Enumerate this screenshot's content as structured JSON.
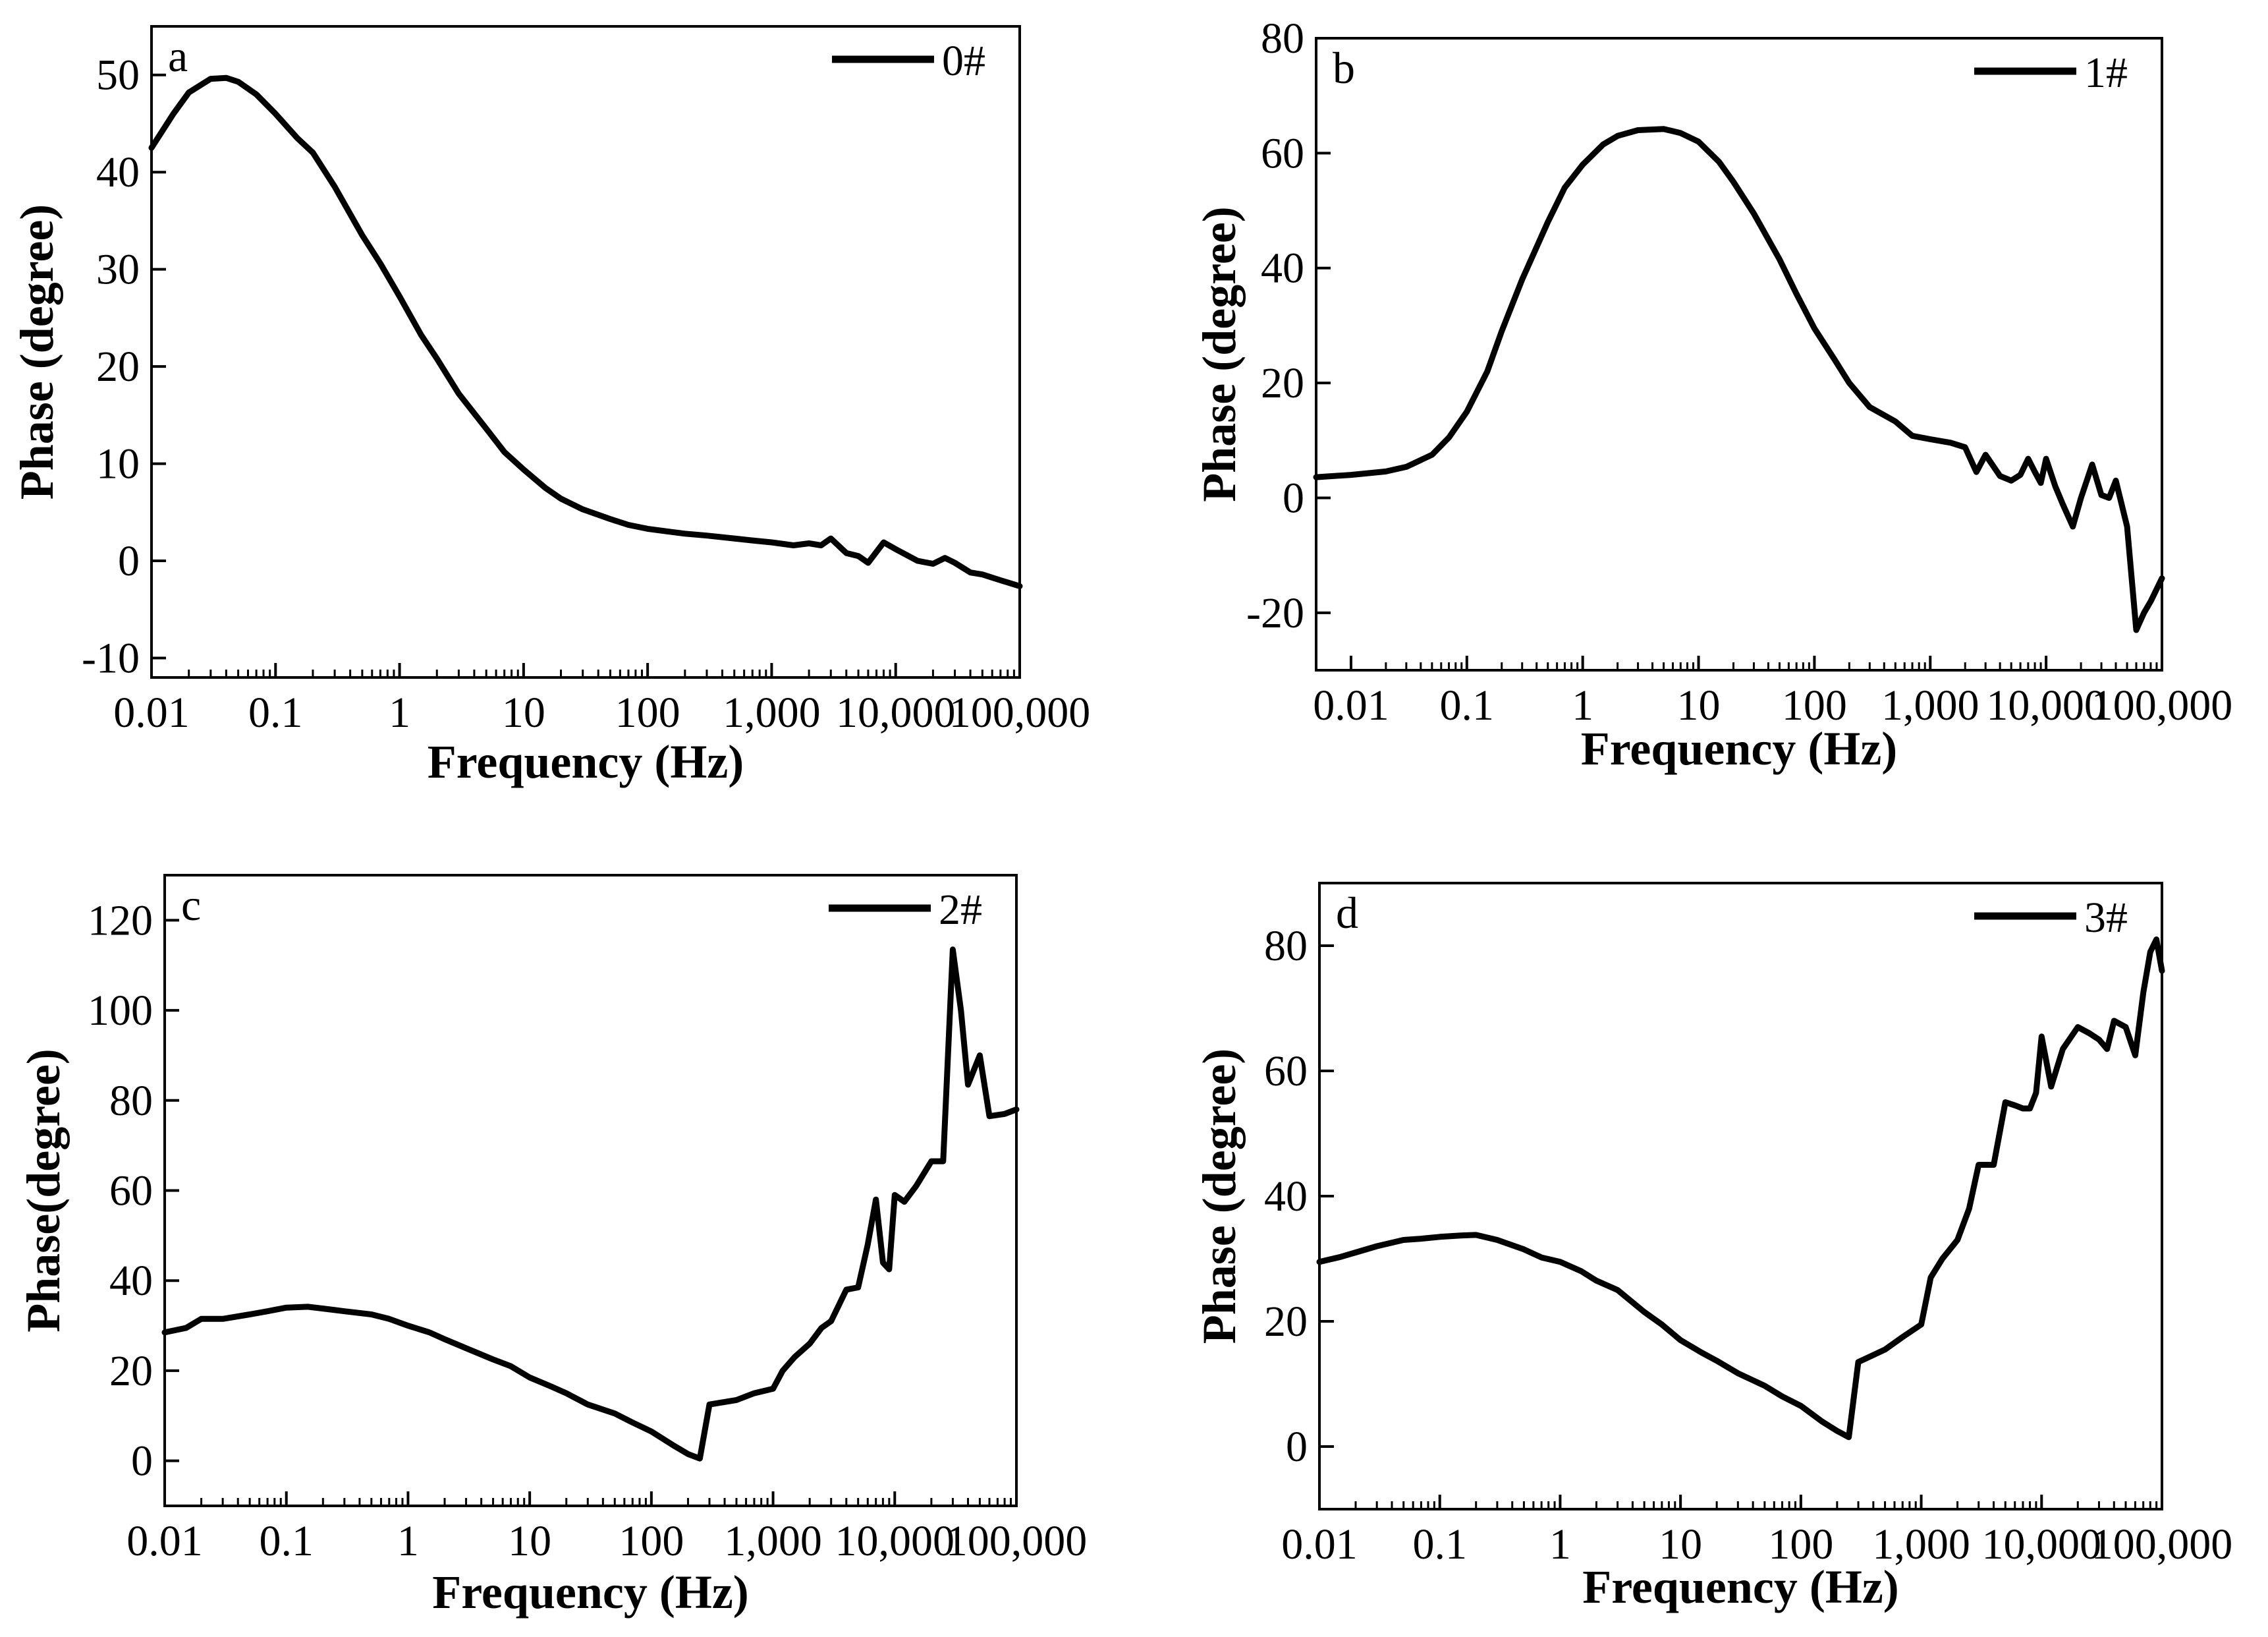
{
  "chart_data": [
    {
      "panel": "a",
      "type": "line",
      "xscale": "log",
      "xlim": [
        0.01,
        100000
      ],
      "ylim": [
        -12,
        55
      ],
      "xticks": [
        0.01,
        0.1,
        1,
        10,
        100,
        1000,
        10000,
        100000
      ],
      "xtick_labels": [
        "0.01",
        "0.1",
        "1",
        "10",
        "100",
        "1,000",
        "10,000",
        "100,000"
      ],
      "yticks": [
        -10,
        0,
        10,
        20,
        30,
        40,
        50
      ],
      "ytick_labels": [
        "-10",
        "0",
        "10",
        "20",
        "30",
        "40",
        "50"
      ],
      "xlabel": "Frequency (Hz)",
      "ylabel": "Phase (degree)",
      "legend_position": "top-right",
      "series": [
        {
          "name": "0#",
          "x": [
            0.01,
            0.015,
            0.02,
            0.03,
            0.04,
            0.05,
            0.07,
            0.1,
            0.15,
            0.2,
            0.3,
            0.5,
            0.7,
            1,
            1.5,
            2,
            3,
            5,
            7,
            10,
            15,
            20,
            30,
            50,
            70,
            100,
            150,
            200,
            300,
            500,
            700,
            1000,
            1500,
            2000,
            2500,
            3000,
            4000,
            5000,
            6000,
            8000,
            10000,
            15000,
            20000,
            25000,
            30000,
            40000,
            50000,
            70000,
            100000
          ],
          "values": [
            42.5,
            46,
            48.2,
            49.6,
            49.7,
            49.3,
            48,
            46,
            43.5,
            42,
            38.5,
            33.5,
            30.6,
            27.2,
            23.2,
            20.8,
            17.2,
            13.6,
            11.2,
            9.4,
            7.5,
            6.4,
            5.3,
            4.3,
            3.7,
            3.3,
            3,
            2.8,
            2.6,
            2.3,
            2.1,
            1.9,
            1.6,
            1.8,
            1.6,
            2.3,
            0.8,
            0.5,
            -0.2,
            1.9,
            1.2,
            0,
            -0.3,
            0.3,
            -0.2,
            -1.2,
            -1.4,
            -2.0,
            -2.6
          ]
        }
      ]
    },
    {
      "panel": "b",
      "type": "line",
      "xscale": "log",
      "xlim": [
        0.005,
        100000
      ],
      "ylim": [
        -30,
        80
      ],
      "xticks": [
        0.01,
        0.1,
        1,
        10,
        100,
        1000,
        10000,
        100000
      ],
      "xtick_labels": [
        "0.01",
        "0.1",
        "1",
        "10",
        "100",
        "1,000",
        "10,000",
        "100,000"
      ],
      "yticks": [
        -20,
        0,
        20,
        40,
        60,
        80
      ],
      "ytick_labels": [
        "-20",
        "0",
        "20",
        "40",
        "60",
        "80"
      ],
      "xlabel": "Frequency (Hz)",
      "ylabel": "Phase (degree)",
      "legend_position": "top-right",
      "series": [
        {
          "name": "1#",
          "x": [
            0.005,
            0.01,
            0.02,
            0.03,
            0.05,
            0.07,
            0.1,
            0.15,
            0.2,
            0.3,
            0.5,
            0.7,
            1,
            1.5,
            2,
            3,
            5,
            7,
            10,
            15,
            20,
            30,
            50,
            70,
            100,
            150,
            200,
            300,
            500,
            700,
            1000,
            1500,
            2000,
            2500,
            3000,
            4000,
            5000,
            6000,
            7000,
            8000,
            9000,
            10000,
            12000,
            14000,
            17000,
            20000,
            25000,
            30000,
            35000,
            40000,
            50000,
            60000,
            70000,
            80000,
            100000
          ],
          "values": [
            3.6,
            4,
            4.6,
            5.4,
            7.5,
            10.5,
            15,
            22,
            29,
            38,
            48,
            54,
            58,
            61.5,
            63,
            64,
            64.2,
            63.5,
            62,
            58.5,
            55,
            49.5,
            41.5,
            35.5,
            29.5,
            24,
            20,
            15.8,
            13.3,
            10.8,
            10.2,
            9.6,
            8.8,
            4.5,
            7.5,
            3.8,
            3,
            4,
            6.8,
            4.5,
            2.6,
            6.8,
            2,
            -1.2,
            -5,
            0,
            5.8,
            0.5,
            0,
            3,
            -5,
            -23,
            -20,
            -18,
            -14
          ]
        }
      ]
    },
    {
      "panel": "c",
      "type": "line",
      "xscale": "log",
      "xlim": [
        0.01,
        100000
      ],
      "ylim": [
        -10,
        130
      ],
      "xticks": [
        0.01,
        0.1,
        1,
        10,
        100,
        1000,
        10000,
        100000
      ],
      "xtick_labels": [
        "0.01",
        "0.1",
        "1",
        "10",
        "100",
        "1,000",
        "10,000",
        "100,000"
      ],
      "yticks": [
        0,
        20,
        40,
        60,
        80,
        100,
        120
      ],
      "ytick_labels": [
        "0",
        "20",
        "40",
        "60",
        "80",
        "100",
        "120"
      ],
      "xlabel": "Frequency (Hz)",
      "ylabel": "Phase(degree)",
      "legend_position": "top-right",
      "series": [
        {
          "name": "2#",
          "x": [
            0.01,
            0.015,
            0.02,
            0.03,
            0.05,
            0.07,
            0.1,
            0.15,
            0.2,
            0.3,
            0.5,
            0.7,
            1,
            1.5,
            2,
            3,
            5,
            7,
            10,
            15,
            20,
            30,
            50,
            70,
            100,
            150,
            200,
            250,
            300,
            500,
            700,
            1000,
            1200,
            1500,
            2000,
            2500,
            3000,
            4000,
            5000,
            6000,
            7000,
            8000,
            9000,
            10000,
            12000,
            15000,
            20000,
            25000,
            30000,
            35000,
            40000,
            50000,
            60000,
            80000,
            100000
          ],
          "values": [
            28.5,
            29.5,
            31.5,
            31.5,
            32.5,
            33.2,
            34,
            34.2,
            33.8,
            33.2,
            32.5,
            31.5,
            30,
            28.5,
            27,
            25,
            22.5,
            21,
            18.5,
            16.5,
            15,
            12.5,
            10.5,
            8.5,
            6.5,
            3.5,
            1.5,
            0.5,
            12.5,
            13.5,
            15,
            16,
            20,
            23,
            26,
            29.5,
            31,
            38,
            38.5,
            48,
            58,
            44,
            42.5,
            59,
            57.5,
            61,
            66.5,
            66.5,
            113.5,
            100,
            83.5,
            90,
            76.5,
            77,
            78
          ]
        }
      ]
    },
    {
      "panel": "d",
      "type": "line",
      "xscale": "log",
      "xlim": [
        0.01,
        100000
      ],
      "ylim": [
        -10,
        90
      ],
      "xticks": [
        0.01,
        0.1,
        1,
        10,
        100,
        1000,
        10000,
        100000
      ],
      "xtick_labels": [
        "0.01",
        "0.1",
        "1",
        "10",
        "100",
        "1,000",
        "10,000",
        "100,000"
      ],
      "yticks": [
        0,
        20,
        40,
        60,
        80
      ],
      "ytick_labels": [
        "0",
        "20",
        "40",
        "60",
        "80"
      ],
      "xlabel": "Frequency (Hz)",
      "ylabel": "Phase (degree)",
      "legend_position": "top-right",
      "series": [
        {
          "name": "3#",
          "x": [
            0.01,
            0.015,
            0.02,
            0.03,
            0.05,
            0.07,
            0.1,
            0.15,
            0.2,
            0.3,
            0.5,
            0.7,
            1,
            1.5,
            2,
            3,
            5,
            7,
            10,
            15,
            20,
            30,
            50,
            70,
            100,
            150,
            200,
            250,
            300,
            500,
            700,
            1000,
            1200,
            1500,
            2000,
            2500,
            3000,
            4000,
            5000,
            6000,
            7000,
            8000,
            9000,
            10000,
            12000,
            15000,
            20000,
            25000,
            30000,
            35000,
            40000,
            50000,
            60000,
            70000,
            80000,
            90000,
            100000
          ],
          "values": [
            29.5,
            30.3,
            31,
            32,
            33,
            33.2,
            33.5,
            33.7,
            33.8,
            33,
            31.5,
            30.2,
            29.5,
            28,
            26.5,
            25,
            21.5,
            19.5,
            17,
            15,
            13.7,
            11.7,
            9.7,
            8,
            6.5,
            4,
            2.5,
            1.5,
            13.5,
            15.5,
            17.5,
            19.5,
            27,
            30,
            33,
            38,
            45,
            45,
            55,
            54.5,
            54,
            54,
            56.5,
            65.5,
            57.5,
            63.5,
            67,
            66,
            65,
            63.5,
            68,
            67,
            62.5,
            72.5,
            79,
            81,
            76
          ]
        }
      ]
    }
  ],
  "panels": [
    {
      "letter": "a",
      "legend_label": "0#"
    },
    {
      "letter": "b",
      "legend_label": "1#"
    },
    {
      "letter": "c",
      "legend_label": "2#"
    },
    {
      "letter": "d",
      "legend_label": "3#"
    }
  ],
  "colors": {
    "line": "#000000",
    "axis": "#000000",
    "background": "#ffffff"
  }
}
